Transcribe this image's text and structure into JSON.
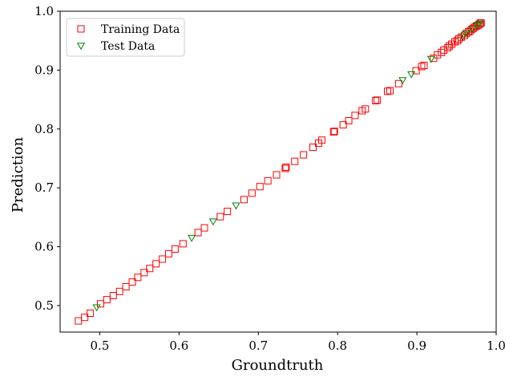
{
  "chart_data": {
    "type": "scatter",
    "title": "",
    "xlabel": "Groundtruth",
    "ylabel": "Prediction",
    "xlim": [
      0.45,
      1.0
    ],
    "ylim": [
      0.455,
      1.0
    ],
    "x_ticks": [
      {
        "value": 0.5,
        "label": "0.5"
      },
      {
        "value": 0.6,
        "label": "0.6"
      },
      {
        "value": 0.7,
        "label": "0.7"
      },
      {
        "value": 0.8,
        "label": "0.8"
      },
      {
        "value": 0.9,
        "label": "0.9"
      },
      {
        "value": 1.0,
        "label": "1.0"
      }
    ],
    "y_ticks": [
      {
        "value": 0.5,
        "label": "0.5"
      },
      {
        "value": 0.6,
        "label": "0.6"
      },
      {
        "value": 0.7,
        "label": "0.7"
      },
      {
        "value": 0.8,
        "label": "0.8"
      },
      {
        "value": 0.9,
        "label": "0.9"
      },
      {
        "value": 1.0,
        "label": "1.0"
      }
    ],
    "grid": false,
    "legend_position": "top-left",
    "series": [
      {
        "name": "Training Data",
        "marker": "square",
        "color": "#ff0000",
        "points": [
          [
            0.473,
            0.474
          ],
          [
            0.481,
            0.48
          ],
          [
            0.488,
            0.487
          ],
          [
            0.501,
            0.503
          ],
          [
            0.509,
            0.51
          ],
          [
            0.517,
            0.517
          ],
          [
            0.525,
            0.524
          ],
          [
            0.533,
            0.532
          ],
          [
            0.541,
            0.54
          ],
          [
            0.548,
            0.548
          ],
          [
            0.556,
            0.556
          ],
          [
            0.563,
            0.563
          ],
          [
            0.571,
            0.571
          ],
          [
            0.579,
            0.579
          ],
          [
            0.587,
            0.588
          ],
          [
            0.595,
            0.596
          ],
          [
            0.605,
            0.605
          ],
          [
            0.624,
            0.624
          ],
          [
            0.632,
            0.632
          ],
          [
            0.652,
            0.651
          ],
          [
            0.661,
            0.66
          ],
          [
            0.682,
            0.68
          ],
          [
            0.692,
            0.691
          ],
          [
            0.702,
            0.702
          ],
          [
            0.712,
            0.712
          ],
          [
            0.723,
            0.722
          ],
          [
            0.734,
            0.733
          ],
          [
            0.735,
            0.735
          ],
          [
            0.746,
            0.745
          ],
          [
            0.757,
            0.756
          ],
          [
            0.769,
            0.769
          ],
          [
            0.776,
            0.776
          ],
          [
            0.78,
            0.781
          ],
          [
            0.795,
            0.795
          ],
          [
            0.796,
            0.796
          ],
          [
            0.807,
            0.807
          ],
          [
            0.814,
            0.814
          ],
          [
            0.822,
            0.823
          ],
          [
            0.831,
            0.831
          ],
          [
            0.835,
            0.834
          ],
          [
            0.848,
            0.848
          ],
          [
            0.85,
            0.849
          ],
          [
            0.863,
            0.864
          ],
          [
            0.866,
            0.865
          ],
          [
            0.877,
            0.877
          ],
          [
            0.899,
            0.899
          ],
          [
            0.906,
            0.906
          ],
          [
            0.909,
            0.908
          ],
          [
            0.921,
            0.92
          ],
          [
            0.926,
            0.926
          ],
          [
            0.931,
            0.93
          ],
          [
            0.934,
            0.934
          ],
          [
            0.939,
            0.938
          ],
          [
            0.941,
            0.941
          ],
          [
            0.944,
            0.944
          ],
          [
            0.948,
            0.948
          ],
          [
            0.951,
            0.95
          ],
          [
            0.953,
            0.953
          ],
          [
            0.956,
            0.956
          ],
          [
            0.96,
            0.959
          ],
          [
            0.962,
            0.962
          ],
          [
            0.965,
            0.965
          ],
          [
            0.967,
            0.966
          ],
          [
            0.969,
            0.969
          ],
          [
            0.971,
            0.971
          ],
          [
            0.973,
            0.973
          ],
          [
            0.975,
            0.975
          ],
          [
            0.977,
            0.976
          ],
          [
            0.979,
            0.978
          ],
          [
            0.98,
            0.98
          ],
          [
            0.981,
            0.98
          ]
        ]
      },
      {
        "name": "Test Data",
        "marker": "triangle-down",
        "color": "#008000",
        "points": [
          [
            0.496,
            0.497
          ],
          [
            0.616,
            0.615
          ],
          [
            0.643,
            0.643
          ],
          [
            0.672,
            0.67
          ],
          [
            0.882,
            0.883
          ],
          [
            0.893,
            0.893
          ],
          [
            0.918,
            0.919
          ],
          [
            0.958,
            0.957
          ],
          [
            0.963,
            0.963
          ],
          [
            0.97,
            0.97
          ],
          [
            0.976,
            0.976
          ],
          [
            0.979,
            0.979
          ]
        ]
      }
    ]
  }
}
